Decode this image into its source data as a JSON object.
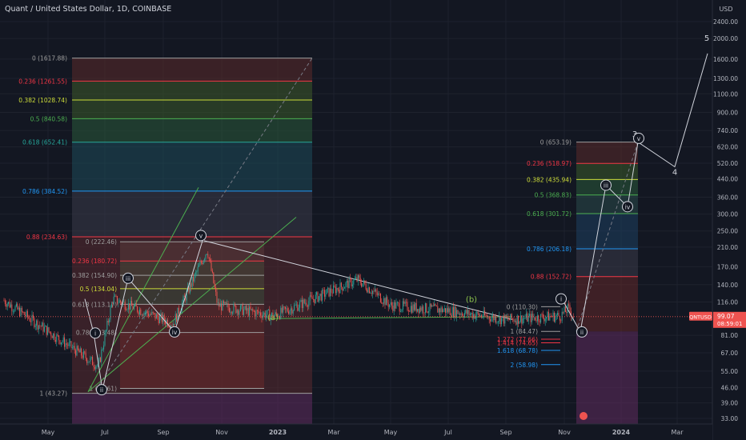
{
  "header": {
    "title": "Quant / United States Dollar, 1D, COINBASE"
  },
  "currency": "USD",
  "price_tag": {
    "symbol": "QNTUSD",
    "price": "99.07",
    "countdown": "08:59:01"
  },
  "colors": {
    "background": "#131722",
    "text": "#d1d4dc",
    "axis_text": "#b2b5be",
    "candle_up": "#26a69a",
    "candle_down": "#ef5350",
    "wave_lines": "#d1d4dc",
    "trend_green": "#4caf50",
    "price_tag": "#ef5350"
  },
  "chart_data": {
    "type": "candlestick",
    "title": "Quant / United States Dollar, 1D, COINBASE",
    "y_scale": "log",
    "y_ticks": [
      "2400.00",
      "2000.00",
      "1600.00",
      "1300.00",
      "1100.00",
      "900.00",
      "740.00",
      "620.00",
      "520.00",
      "440.00",
      "360.00",
      "300.00",
      "250.00",
      "210.00",
      "170.00",
      "140.00",
      "116.00",
      "99.07",
      "81.00",
      "67.00",
      "55.00",
      "46.00",
      "39.00",
      "33.00"
    ],
    "x_ticks": [
      "May",
      "Jul",
      "Sep",
      "Nov",
      "2023",
      "Mar",
      "May",
      "Jul",
      "Sep",
      "Nov",
      "2024",
      "Mar"
    ],
    "price_path": [
      [
        "May",
        118
      ],
      [
        "Jul",
        58
      ],
      [
        "Jul",
        120
      ],
      [
        "Sep",
        92
      ],
      [
        "Sep",
        205
      ],
      [
        "Nov",
        112
      ],
      [
        "2023",
        100
      ],
      [
        "Mar",
        148
      ],
      [
        "May",
        112
      ],
      [
        "Jul",
        106
      ],
      [
        "Sep",
        96
      ],
      [
        "Nov",
        100
      ],
      [
        "Nov",
        108
      ],
      [
        "Nov",
        99.07
      ]
    ],
    "fib_sets": [
      {
        "name": "fib-large",
        "levels": [
          {
            "label": "0 (1617.88)",
            "value": 1617.88,
            "color": "#9e9e9e"
          },
          {
            "label": "0.236 (1261.55)",
            "value": 1261.55,
            "color": "#f23645"
          },
          {
            "label": "0.382 (1028.74)",
            "value": 1028.74,
            "color": "#cddc39"
          },
          {
            "label": "0.5 (840.58)",
            "value": 840.58,
            "color": "#4caf50"
          },
          {
            "label": "0.618 (652.41)",
            "value": 652.41,
            "color": "#26a69a"
          },
          {
            "label": "0.786 (384.52)",
            "value": 384.52,
            "color": "#2196f3"
          },
          {
            "label": "0.88 (234.63)",
            "value": 234.63,
            "color": "#f23645"
          },
          {
            "label": "1 (43.27)",
            "value": 43.27,
            "color": "#9e9e9e"
          }
        ]
      },
      {
        "name": "fib-mid",
        "levels": [
          {
            "label": "0 (222.46)",
            "value": 222.46,
            "color": "#9e9e9e"
          },
          {
            "label": "0.236 (180.72)",
            "value": 180.72,
            "color": "#f23645"
          },
          {
            "label": "0.382 (154.90)",
            "value": 154.9,
            "color": "#9e9e9e"
          },
          {
            "label": "0.5 (134.04)",
            "value": 134.04,
            "color": "#cddc39"
          },
          {
            "label": "0.618 (113.17)",
            "value": 113.17,
            "color": "#9e9e9e"
          },
          {
            "label": "0.786 (83.48)",
            "value": 83.48,
            "color": "#9e9e9e"
          },
          {
            "label": "1 (45.61)",
            "value": 45.61,
            "color": "#9e9e9e"
          }
        ]
      },
      {
        "name": "fib-right",
        "levels": [
          {
            "label": "0 (653.19)",
            "value": 653.19,
            "color": "#9e9e9e"
          },
          {
            "label": "0.236 (518.97)",
            "value": 518.97,
            "color": "#f23645"
          },
          {
            "label": "0.382 (435.94)",
            "value": 435.94,
            "color": "#cddc39"
          },
          {
            "label": "0.5 (368.83)",
            "value": 368.83,
            "color": "#4caf50"
          },
          {
            "label": "0.618 (301.72)",
            "value": 301.72,
            "color": "#4caf50"
          },
          {
            "label": "0.786 (206.18)",
            "value": 206.18,
            "color": "#2196f3"
          },
          {
            "label": "0.88 (152.72)",
            "value": 152.72,
            "color": "#f23645"
          }
        ]
      },
      {
        "name": "fib-small",
        "levels": [
          {
            "label": "0 (110.30)",
            "value": 110.3,
            "color": "#9e9e9e"
          },
          {
            "label": "1 (84.47)",
            "value": 84.47,
            "color": "#9e9e9e"
          },
          {
            "label": "1.272 (77.66)",
            "value": 77.66,
            "color": "#f23645"
          },
          {
            "label": "1.414 (74.65)",
            "value": 74.65,
            "color": "#f23645"
          },
          {
            "label": "1.618 (68.78)",
            "value": 68.78,
            "color": "#2196f3"
          },
          {
            "label": "2 (58.98)",
            "value": 58.98,
            "color": "#2196f3"
          }
        ]
      }
    ],
    "wave_labels": [
      {
        "text": "i",
        "x": "Jul",
        "y": 83
      },
      {
        "text": "ii",
        "x": "Jul",
        "y": 45
      },
      {
        "text": "iii",
        "x": "Jul",
        "y": 150
      },
      {
        "text": "iv",
        "x": "Sep",
        "y": 84
      },
      {
        "text": "v",
        "x": "Sep",
        "y": 238
      },
      {
        "text": "(a)",
        "x": "2023",
        "y": 98
      },
      {
        "text": "(b)",
        "x": "Jul",
        "y": 119
      },
      {
        "text": "i",
        "x": "Nov",
        "y": 120
      },
      {
        "text": "ii",
        "x": "Nov",
        "y": 84
      },
      {
        "text": "iii",
        "x": "2024",
        "y": 410
      },
      {
        "text": "iv",
        "x": "2024",
        "y": 325
      },
      {
        "text": "3",
        "x": "2024",
        "y": 710
      },
      {
        "text": "v",
        "x": "2024",
        "y": 680
      },
      {
        "text": "4",
        "x": "Mar",
        "y": 470
      },
      {
        "text": "5",
        "x": "Mar",
        "y": 2000
      }
    ],
    "projection": [
      [
        "Nov",
        99.07
      ],
      [
        "2024",
        653
      ],
      [
        "Mar",
        500
      ],
      [
        "Mar",
        1700
      ]
    ]
  }
}
